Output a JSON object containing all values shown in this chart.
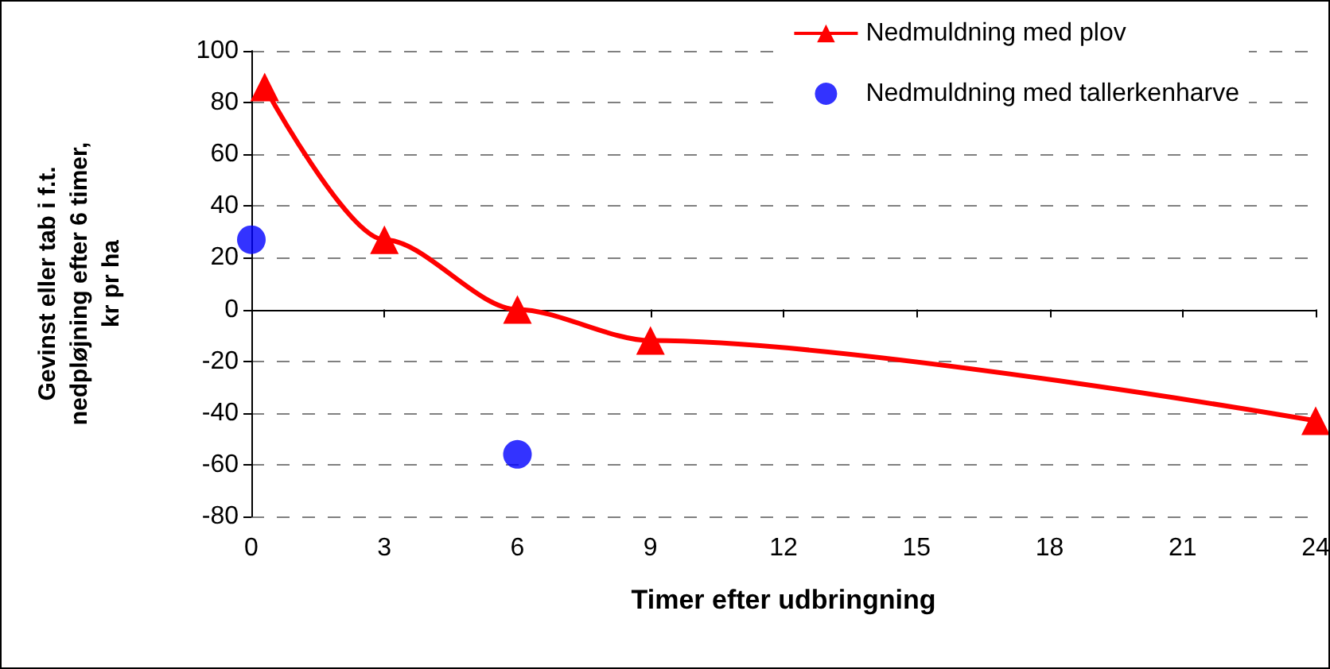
{
  "chart_data": {
    "type": "line",
    "xlabel": "Timer efter udbringning",
    "ylabel": "Gevinst eller tab i f.t. nedpløjning efter 6 timer, kr pr ha",
    "series": [
      {
        "name": "Nedmuldning med plov",
        "color": "#ff0000",
        "marker": "triangle",
        "x": [
          0.3,
          3,
          6,
          9,
          24
        ],
        "values": [
          86,
          27,
          0,
          -12,
          -43
        ]
      },
      {
        "name": "Nedmuldning med tallerkenharve",
        "color": "#0000ff",
        "type": "scatter",
        "marker": "circle",
        "x": [
          0,
          6
        ],
        "values": [
          27,
          -56
        ]
      }
    ],
    "xlim": [
      0,
      24
    ],
    "xticks": [
      0,
      3,
      6,
      9,
      12,
      15,
      18,
      21,
      24
    ],
    "ylim": [
      -80,
      100
    ],
    "yticks": [
      -80,
      -60,
      -40,
      -20,
      0,
      20,
      40,
      60,
      80,
      100
    ],
    "grid": "y",
    "legend": "top right"
  }
}
